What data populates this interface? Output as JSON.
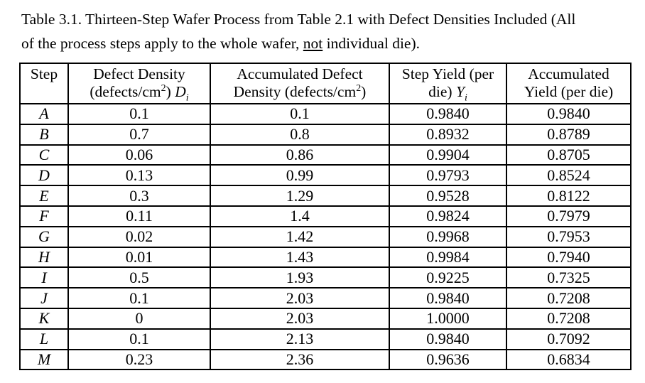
{
  "colors": {
    "background": "#ffffff",
    "text": "#000000",
    "border": "#000000"
  },
  "caption": {
    "line1": "Table 3.1. Thirteen-Step Wafer Process from Table 2.1 with Defect Densities Included (All",
    "line2_pre": "of the process steps apply to the whole wafer, ",
    "line2_underlined": "not",
    "line2_post": " individual die)."
  },
  "table": {
    "headers": {
      "step": "Step",
      "defect_density": {
        "line1": "Defect Density",
        "line2_pre": "(defects/cm",
        "sup": "2",
        "line2_mid": ") ",
        "var": "D",
        "sub": "i"
      },
      "accumulated_defect_density": {
        "line1": "Accumulated Defect",
        "line2_pre": "Density (defects/cm",
        "sup": "2",
        "line2_post": ")"
      },
      "step_yield": {
        "line1": "Step Yield (per",
        "line2_pre": "die) ",
        "var": "Y",
        "sub": "i"
      },
      "accumulated_yield": {
        "line1": "Accumulated",
        "line2": "Yield (per die)"
      }
    },
    "rows": [
      {
        "step": "A",
        "defect_density": "0.1",
        "accumulated_defect_density": "0.1",
        "step_yield": "0.9840",
        "accumulated_yield": "0.9840"
      },
      {
        "step": "B",
        "defect_density": "0.7",
        "accumulated_defect_density": "0.8",
        "step_yield": "0.8932",
        "accumulated_yield": "0.8789"
      },
      {
        "step": "C",
        "defect_density": "0.06",
        "accumulated_defect_density": "0.86",
        "step_yield": "0.9904",
        "accumulated_yield": "0.8705"
      },
      {
        "step": "D",
        "defect_density": "0.13",
        "accumulated_defect_density": "0.99",
        "step_yield": "0.9793",
        "accumulated_yield": "0.8524"
      },
      {
        "step": "E",
        "defect_density": "0.3",
        "accumulated_defect_density": "1.29",
        "step_yield": "0.9528",
        "accumulated_yield": "0.8122"
      },
      {
        "step": "F",
        "defect_density": "0.11",
        "accumulated_defect_density": "1.4",
        "step_yield": "0.9824",
        "accumulated_yield": "0.7979"
      },
      {
        "step": "G",
        "defect_density": "0.02",
        "accumulated_defect_density": "1.42",
        "step_yield": "0.9968",
        "accumulated_yield": "0.7953"
      },
      {
        "step": "H",
        "defect_density": "0.01",
        "accumulated_defect_density": "1.43",
        "step_yield": "0.9984",
        "accumulated_yield": "0.7940"
      },
      {
        "step": "I",
        "defect_density": "0.5",
        "accumulated_defect_density": "1.93",
        "step_yield": "0.9225",
        "accumulated_yield": "0.7325"
      },
      {
        "step": "J",
        "defect_density": "0.1",
        "accumulated_defect_density": "2.03",
        "step_yield": "0.9840",
        "accumulated_yield": "0.7208"
      },
      {
        "step": "K",
        "defect_density": "0",
        "accumulated_defect_density": "2.03",
        "step_yield": "1.0000",
        "accumulated_yield": "0.7208"
      },
      {
        "step": "L",
        "defect_density": "0.1",
        "accumulated_defect_density": "2.13",
        "step_yield": "0.9840",
        "accumulated_yield": "0.7092"
      },
      {
        "step": "M",
        "defect_density": "0.23",
        "accumulated_defect_density": "2.36",
        "step_yield": "0.9636",
        "accumulated_yield": "0.6834"
      }
    ]
  }
}
